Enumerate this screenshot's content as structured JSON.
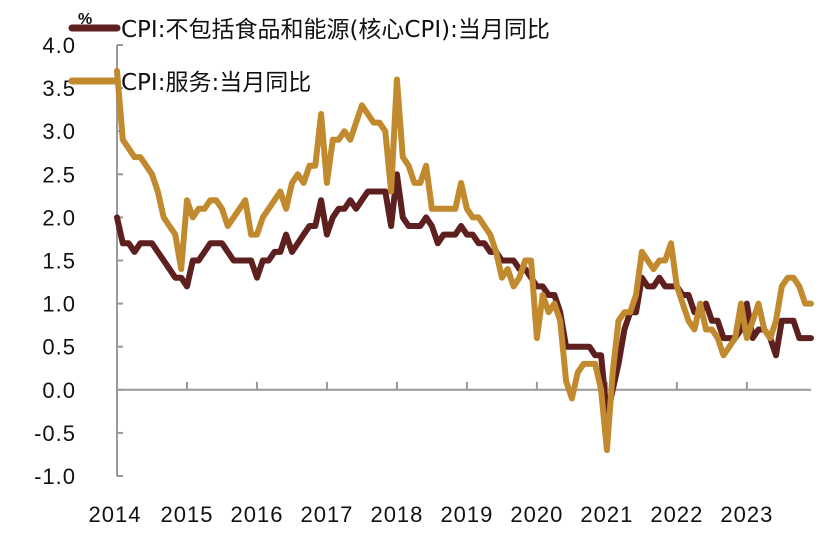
{
  "chart_data": {
    "type": "line",
    "title": "",
    "unit_label": "%",
    "xlabel": "",
    "ylabel": "",
    "ylim": [
      -1.0,
      4.0
    ],
    "y_ticks": [
      "4.0",
      "3.5",
      "3.0",
      "2.5",
      "2.0",
      "1.5",
      "1.0",
      "0.5",
      "0.0",
      "-0.5",
      "-1.0"
    ],
    "x_ticks": [
      "2014",
      "2015",
      "2016",
      "2017",
      "2018",
      "2019",
      "2020",
      "2021",
      "2022",
      "2023"
    ],
    "x_start": "2014-01",
    "x_end": "2023-12",
    "frequency": "monthly",
    "grid": false,
    "legend_position": "top",
    "series": [
      {
        "name": "CPI:不包括食品和能源(核心CPI):当月同比",
        "color": "#5E1F1F",
        "values": [
          2.0,
          1.7,
          1.7,
          1.6,
          1.7,
          1.7,
          1.7,
          1.6,
          1.5,
          1.4,
          1.3,
          1.3,
          1.2,
          1.5,
          1.5,
          1.6,
          1.7,
          1.7,
          1.7,
          1.6,
          1.5,
          1.5,
          1.5,
          1.5,
          1.3,
          1.5,
          1.5,
          1.6,
          1.6,
          1.8,
          1.6,
          1.7,
          1.8,
          1.9,
          1.9,
          2.2,
          1.8,
          2.0,
          2.1,
          2.1,
          2.2,
          2.1,
          2.2,
          2.3,
          2.3,
          2.3,
          2.3,
          1.9,
          2.5,
          2.0,
          1.9,
          1.9,
          1.9,
          2.0,
          1.9,
          1.7,
          1.8,
          1.8,
          1.8,
          1.9,
          1.8,
          1.8,
          1.7,
          1.7,
          1.6,
          1.6,
          1.5,
          1.5,
          1.5,
          1.4,
          1.4,
          1.3,
          1.2,
          1.2,
          1.1,
          1.1,
          0.9,
          0.5,
          0.5,
          0.5,
          0.5,
          0.5,
          0.4,
          0.4,
          -0.3,
          0.0,
          0.3,
          0.7,
          0.9,
          0.9,
          1.3,
          1.2,
          1.2,
          1.3,
          1.2,
          1.2,
          1.2,
          1.1,
          1.1,
          0.9,
          0.9,
          1.0,
          0.8,
          0.8,
          0.6,
          0.6,
          0.6,
          0.7,
          1.0,
          0.6,
          0.7,
          0.7,
          0.6,
          0.4,
          0.8,
          0.8,
          0.8,
          0.6,
          0.6,
          0.6
        ]
      },
      {
        "name": "CPI:服务:当月同比",
        "color": "#C28A2E",
        "values": [
          3.7,
          2.9,
          2.8,
          2.7,
          2.7,
          2.6,
          2.5,
          2.3,
          2.0,
          1.9,
          1.8,
          1.4,
          2.2,
          2.0,
          2.1,
          2.1,
          2.2,
          2.2,
          2.1,
          1.9,
          2.0,
          2.1,
          2.2,
          1.8,
          1.8,
          2.0,
          2.1,
          2.2,
          2.3,
          2.1,
          2.4,
          2.5,
          2.4,
          2.6,
          2.6,
          3.2,
          2.4,
          2.9,
          2.9,
          3.0,
          2.9,
          3.1,
          3.3,
          3.2,
          3.1,
          3.1,
          3.0,
          2.3,
          3.6,
          2.7,
          2.6,
          2.4,
          2.4,
          2.6,
          2.1,
          2.1,
          2.1,
          2.1,
          2.1,
          2.4,
          2.1,
          2.0,
          2.0,
          1.9,
          1.8,
          1.6,
          1.3,
          1.4,
          1.2,
          1.3,
          1.5,
          1.5,
          0.6,
          1.1,
          0.9,
          1.0,
          0.8,
          0.1,
          -0.1,
          0.2,
          0.3,
          0.3,
          0.3,
          0.0,
          -0.7,
          0.2,
          0.8,
          0.9,
          0.9,
          1.1,
          1.6,
          1.5,
          1.4,
          1.5,
          1.5,
          1.7,
          1.2,
          1.0,
          0.8,
          0.7,
          1.0,
          0.7,
          0.7,
          0.6,
          0.4,
          0.5,
          0.6,
          1.0,
          0.6,
          0.8,
          1.0,
          0.7,
          0.6,
          0.8,
          1.2,
          1.3,
          1.3,
          1.2,
          1.0,
          1.0
        ]
      }
    ]
  }
}
